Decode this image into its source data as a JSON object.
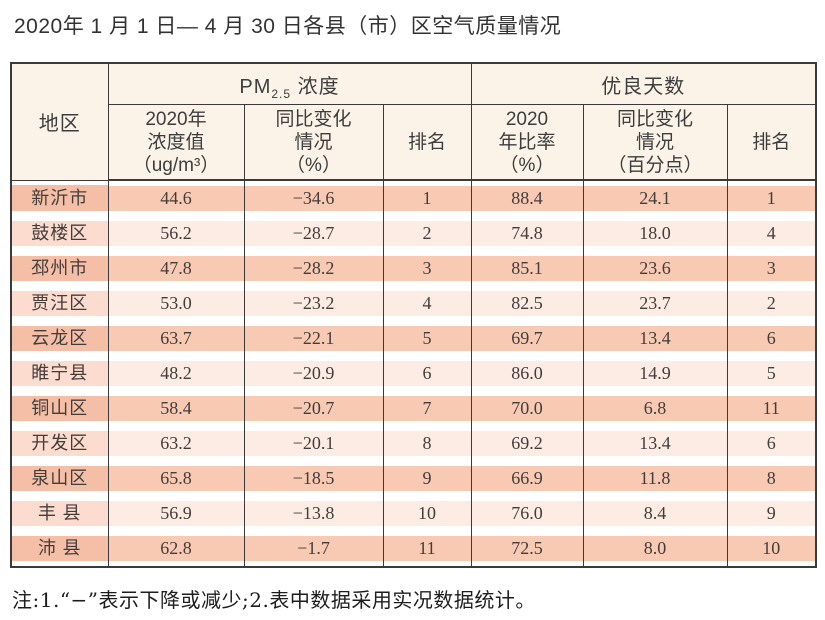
{
  "title": "2020年 1 月 1 日— 4 月 30 日各县（市）区空气质量情况",
  "table": {
    "corner_header": "地区",
    "pm_group": {
      "prefix": "PM",
      "sub": "2.5",
      "suffix": " 浓度"
    },
    "good_group": "优良天数",
    "sub_headers": {
      "pm_value": "2020年\n浓度值\n（ug/m³）",
      "pm_change": "同比变化\n情况\n（%）",
      "pm_rank": "排名",
      "good_rate": "2020\n年比率\n（%）",
      "good_change": "同比变化\n情况\n（百分点）",
      "good_rank": "排名"
    },
    "rows": [
      {
        "region": "新沂市",
        "pm_value": "44.6",
        "pm_change": "−34.6",
        "pm_rank": "1",
        "good_rate": "88.4",
        "good_change": "24.1",
        "good_rank": "1"
      },
      {
        "region": "鼓楼区",
        "pm_value": "56.2",
        "pm_change": "−28.7",
        "pm_rank": "2",
        "good_rate": "74.8",
        "good_change": "18.0",
        "good_rank": "4"
      },
      {
        "region": "邳州市",
        "pm_value": "47.8",
        "pm_change": "−28.2",
        "pm_rank": "3",
        "good_rate": "85.1",
        "good_change": "23.6",
        "good_rank": "3"
      },
      {
        "region": "贾汪区",
        "pm_value": "53.0",
        "pm_change": "−23.2",
        "pm_rank": "4",
        "good_rate": "82.5",
        "good_change": "23.7",
        "good_rank": "2"
      },
      {
        "region": "云龙区",
        "pm_value": "63.7",
        "pm_change": "−22.1",
        "pm_rank": "5",
        "good_rate": "69.7",
        "good_change": "13.4",
        "good_rank": "6"
      },
      {
        "region": "睢宁县",
        "pm_value": "48.2",
        "pm_change": "−20.9",
        "pm_rank": "6",
        "good_rate": "86.0",
        "good_change": "14.9",
        "good_rank": "5"
      },
      {
        "region": "铜山区",
        "pm_value": "58.4",
        "pm_change": "−20.7",
        "pm_rank": "7",
        "good_rate": "70.0",
        "good_change": "6.8",
        "good_rank": "11"
      },
      {
        "region": "开发区",
        "pm_value": "63.2",
        "pm_change": "−20.1",
        "pm_rank": "8",
        "good_rate": "69.2",
        "good_change": "13.4",
        "good_rank": "6"
      },
      {
        "region": "泉山区",
        "pm_value": "65.8",
        "pm_change": "−18.5",
        "pm_rank": "9",
        "good_rate": "66.9",
        "good_change": "11.8",
        "good_rank": "8"
      },
      {
        "region": "丰 县",
        "pm_value": "56.9",
        "pm_change": "−13.8",
        "pm_rank": "10",
        "good_rate": "76.0",
        "good_change": "8.4",
        "good_rank": "9"
      },
      {
        "region": "沛 县",
        "pm_value": "62.8",
        "pm_change": "−1.7",
        "pm_rank": "11",
        "good_rate": "72.5",
        "good_change": "8.0",
        "good_rank": "10"
      }
    ]
  },
  "note": "注:1.“−”表示下降或减少;2.表中数据采用实况数据统计。"
}
